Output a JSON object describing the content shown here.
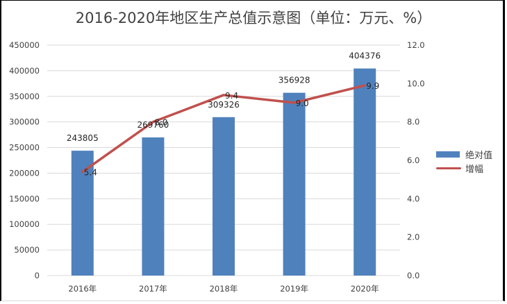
{
  "title": "2016-2020年地区生产总值示意图（单位：万元、%）",
  "legend": {
    "items": [
      {
        "label": "绝对值",
        "type": "bar",
        "color": "#4f81bd"
      },
      {
        "label": "增幅",
        "type": "line",
        "color": "#c0504d"
      }
    ]
  },
  "axes": {
    "left_ticks": [
      "0",
      "50000",
      "100000",
      "150000",
      "200000",
      "250000",
      "300000",
      "350000",
      "400000",
      "450000"
    ],
    "right_ticks": [
      "0.0",
      "2.0",
      "4.0",
      "6.0",
      "8.0",
      "10.0",
      "12.0"
    ],
    "x_ticks": [
      "2016年",
      "2017年",
      "2018年",
      "2019年",
      "2020年"
    ]
  },
  "chart_data": {
    "type": "bar",
    "title": "2016-2020年地区生产总值示意图（单位：万元、%）",
    "categories": [
      "2016年",
      "2017年",
      "2018年",
      "2019年",
      "2020年"
    ],
    "series": [
      {
        "name": "绝对值",
        "type": "bar",
        "axis": "left",
        "color": "#4f81bd",
        "values": [
          243805,
          269760,
          309326,
          356928,
          404376
        ],
        "labels": [
          "243805",
          "269760",
          "309326",
          "356928",
          "404376"
        ]
      },
      {
        "name": "增幅",
        "type": "line",
        "axis": "right",
        "color": "#c0504d",
        "values": [
          5.4,
          8.0,
          9.4,
          9.0,
          9.9
        ],
        "labels": [
          "5.4",
          "8.0",
          "9.4",
          "9.0",
          "9.9"
        ]
      }
    ],
    "xlabel": "",
    "ylabel": "",
    "ylim": [
      0,
      450000
    ],
    "y2lim": [
      0,
      12
    ],
    "y_tick_step": 50000,
    "y2_tick_step": 2,
    "grid": true,
    "legend_position": "right"
  }
}
